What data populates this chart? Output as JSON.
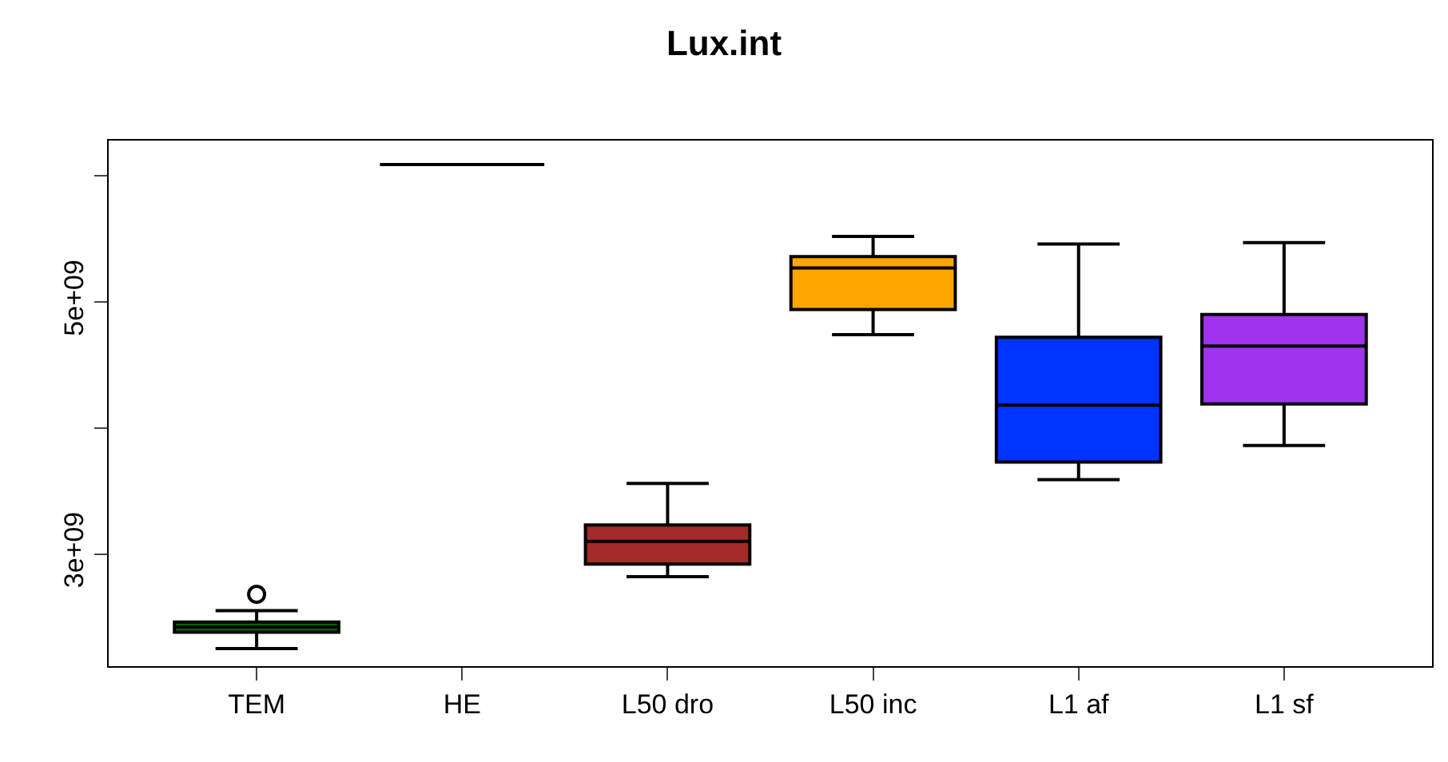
{
  "chart_data": {
    "type": "box",
    "title": "Lux.int",
    "categories": [
      "TEM",
      "HE",
      "L50 dro",
      "L50 inc",
      "L1 af",
      "L1 sf"
    ],
    "colors": [
      "#006400",
      "#000000",
      "#a52a2a",
      "#ffa500",
      "#0033ff",
      "#a033ee"
    ],
    "boxes": [
      {
        "low": 2250000000.0,
        "q1": 2380000000.0,
        "median": 2420000000.0,
        "q3": 2460000000.0,
        "high": 2550000000.0,
        "outliers": [
          2680000000.0
        ]
      },
      {
        "low": 6090000000.0,
        "q1": 6090000000.0,
        "median": 6090000000.0,
        "q3": 6090000000.0,
        "high": 6090000000.0
      },
      {
        "low": 2820000000.0,
        "q1": 2920000000.0,
        "median": 3100000000.0,
        "q3": 3230000000.0,
        "high": 3560000000.0
      },
      {
        "low": 4740000000.0,
        "q1": 4940000000.0,
        "median": 5270000000.0,
        "q3": 5360000000.0,
        "high": 5520000000.0
      },
      {
        "low": 3590000000.0,
        "q1": 3730000000.0,
        "median": 4180000000.0,
        "q3": 4720000000.0,
        "high": 5460000000.0
      },
      {
        "low": 3860000000.0,
        "q1": 4190000000.0,
        "median": 4650000000.0,
        "q3": 4900000000.0,
        "high": 5470000000.0
      }
    ],
    "ylim": [
      2110000000.0,
      6280000000.0
    ],
    "yticks": [
      {
        "value": 3000000000.0,
        "label": "3e+09"
      },
      {
        "value": 4000000000.0,
        "label": null
      },
      {
        "value": 5000000000.0,
        "label": "5e+09"
      },
      {
        "value": 6000000000.0,
        "label": null
      }
    ],
    "legend": false
  }
}
